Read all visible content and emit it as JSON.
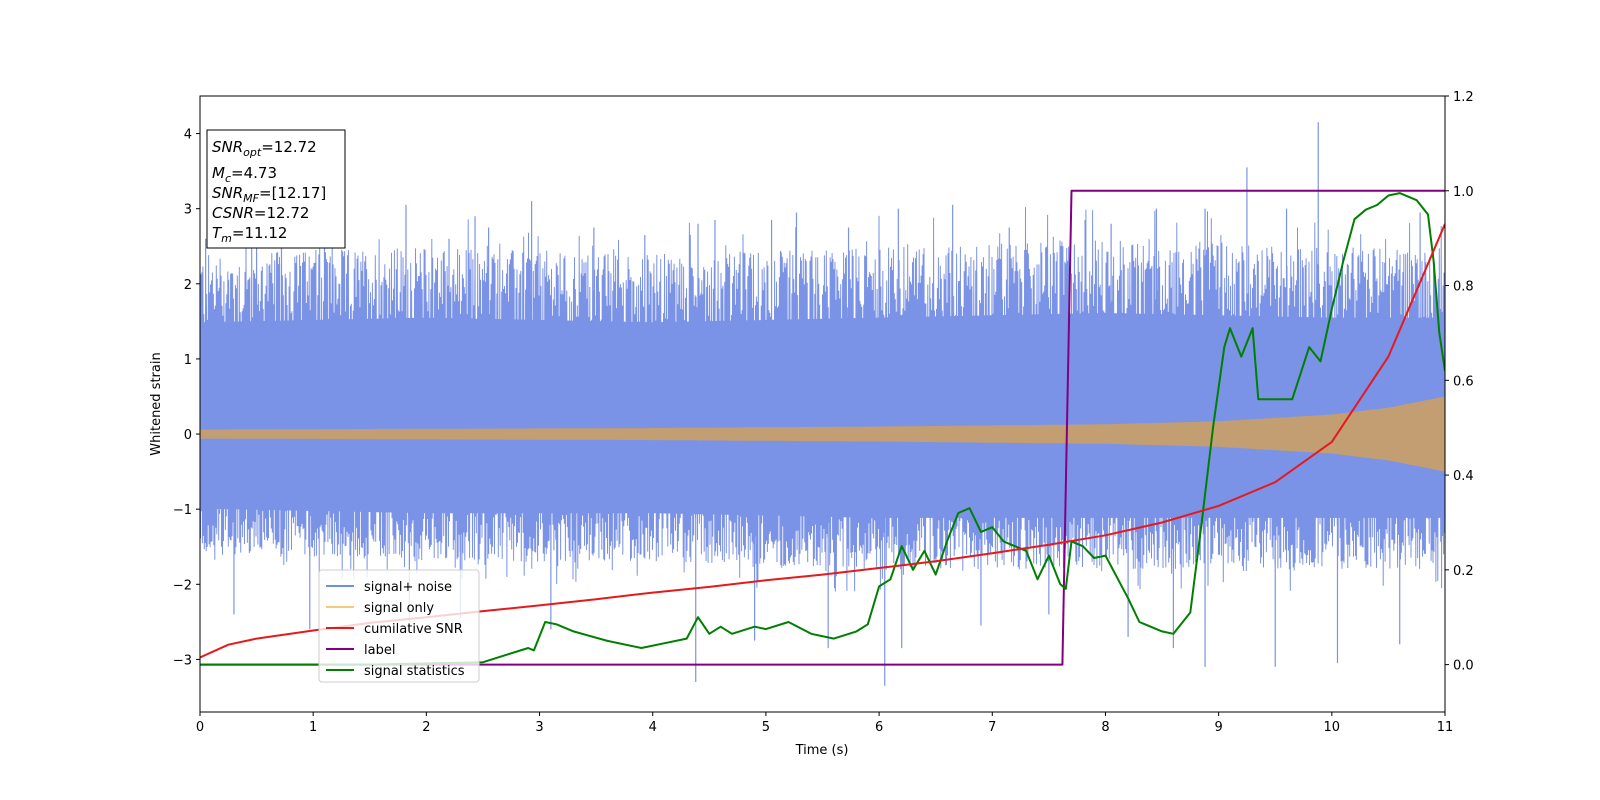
{
  "chart_data": {
    "type": "line",
    "xlabel": "Time (s)",
    "ylabel": "Whitened strain",
    "xlim": [
      0,
      11
    ],
    "ylim_left": [
      -3.7,
      4.5
    ],
    "ylim_right": [
      -0.1,
      1.2
    ],
    "x_ticks": [
      "0",
      "1",
      "2",
      "3",
      "4",
      "5",
      "6",
      "7",
      "8",
      "9",
      "10",
      "11"
    ],
    "y_ticks_left": [
      "−3",
      "−2",
      "−1",
      "0",
      "1",
      "2",
      "3",
      "4"
    ],
    "y_ticks_right": [
      "0.0",
      "0.2",
      "0.4",
      "0.6",
      "0.8",
      "1.0",
      "1.2"
    ],
    "info_box": {
      "snr_opt": {
        "sym": "SNR",
        "sub": "opt",
        "value": "=12.72"
      },
      "mc": {
        "sym": "M",
        "sub": "c",
        "value": "=4.73"
      },
      "snr_mf": {
        "sym": "SNR",
        "sub": "MF",
        "value": "=[12.17]"
      },
      "csnr": {
        "sym": "CSNR",
        "sub": "",
        "value": "=12.72"
      },
      "tm": {
        "sym": "T",
        "sub": "m",
        "value": "=11.12"
      }
    },
    "legend": {
      "position": "lower-left",
      "entries": [
        {
          "label": "signal+ noise",
          "color": "#6f8ee8"
        },
        {
          "label": "signal only",
          "color": "#f5c97a"
        },
        {
          "label": "cumilative SNR",
          "color": "#e41a1c"
        },
        {
          "label": "label",
          "color": "#800080"
        },
        {
          "label": "signal statistics",
          "color": "#007f00"
        }
      ]
    },
    "series": [
      {
        "name": "signal+ noise",
        "axis": "left",
        "color": "#7b93e6",
        "envelope": {
          "x": [
            0,
            2,
            4,
            6,
            8,
            10,
            11
          ],
          "upper": [
            2.4,
            2.5,
            2.4,
            2.5,
            2.6,
            2.5,
            2.5
          ],
          "lower": [
            -1.6,
            -1.7,
            -1.7,
            -1.8,
            -1.8,
            -1.8,
            -1.8
          ]
        },
        "spikes": [
          [
            0.05,
            2.6
          ],
          [
            0.5,
            2.9
          ],
          [
            0.72,
            2.55
          ],
          [
            1.1,
            2.65
          ],
          [
            1.82,
            3.05
          ],
          [
            2.2,
            2.6
          ],
          [
            2.43,
            2.9
          ],
          [
            2.55,
            2.75
          ],
          [
            2.93,
            3.1
          ],
          [
            3.48,
            2.75
          ],
          [
            3.93,
            2.65
          ],
          [
            4.4,
            2.8
          ],
          [
            4.55,
            2.85
          ],
          [
            5.05,
            2.85
          ],
          [
            5.27,
            2.95
          ],
          [
            5.73,
            2.75
          ],
          [
            6.17,
            3.0
          ],
          [
            6.65,
            3.05
          ],
          [
            7.15,
            2.75
          ],
          [
            7.82,
            2.85
          ],
          [
            8.05,
            2.8
          ],
          [
            8.45,
            3.0
          ],
          [
            8.88,
            3.0
          ],
          [
            9.25,
            3.55
          ],
          [
            9.6,
            3.0
          ],
          [
            9.88,
            4.15
          ],
          [
            10.78,
            2.95
          ],
          [
            0.3,
            -2.4
          ],
          [
            0.97,
            -2.6
          ],
          [
            1.85,
            -2.5
          ],
          [
            2.3,
            -2.45
          ],
          [
            3.1,
            -2.6
          ],
          [
            4.38,
            -3.3
          ],
          [
            4.9,
            -2.75
          ],
          [
            5.55,
            -2.85
          ],
          [
            6.05,
            -3.35
          ],
          [
            6.2,
            -2.85
          ],
          [
            6.9,
            -2.55
          ],
          [
            7.5,
            -2.4
          ],
          [
            8.2,
            -2.7
          ],
          [
            8.6,
            -2.85
          ],
          [
            8.88,
            -3.1
          ],
          [
            9.5,
            -3.1
          ],
          [
            10.05,
            -3.05
          ],
          [
            10.6,
            -2.8
          ]
        ]
      },
      {
        "name": "signal only",
        "axis": "left",
        "color": "#c29e72",
        "amplitude": {
          "x": [
            0,
            2,
            4,
            6,
            8,
            9,
            10,
            10.5,
            11
          ],
          "values": [
            0.06,
            0.07,
            0.08,
            0.1,
            0.13,
            0.17,
            0.26,
            0.35,
            0.5
          ]
        }
      },
      {
        "name": "cumilative SNR",
        "axis": "right",
        "color": "#e41a1c",
        "x": [
          0,
          0.25,
          0.5,
          1,
          1.5,
          2,
          2.5,
          3,
          3.5,
          4,
          4.5,
          5,
          5.5,
          6,
          6.5,
          7,
          7.5,
          8,
          8.5,
          9,
          9.5,
          10,
          10.5,
          11
        ],
        "values": [
          0.015,
          0.042,
          0.055,
          0.072,
          0.088,
          0.1,
          0.113,
          0.125,
          0.138,
          0.152,
          0.164,
          0.178,
          0.19,
          0.204,
          0.218,
          0.235,
          0.253,
          0.273,
          0.3,
          0.335,
          0.385,
          0.47,
          0.65,
          0.93
        ]
      },
      {
        "name": "label",
        "axis": "right",
        "color": "#800080",
        "x": [
          0,
          7.62,
          7.7,
          11
        ],
        "values": [
          0,
          0,
          1,
          1
        ]
      },
      {
        "name": "signal statistics",
        "axis": "right",
        "color": "#007f00",
        "x": [
          0,
          1.5,
          2.5,
          2.7,
          2.9,
          2.95,
          3.05,
          3.15,
          3.3,
          3.6,
          3.9,
          4.1,
          4.3,
          4.4,
          4.5,
          4.6,
          4.7,
          4.9,
          5.0,
          5.2,
          5.4,
          5.6,
          5.8,
          5.9,
          6.0,
          6.1,
          6.2,
          6.3,
          6.4,
          6.5,
          6.6,
          6.7,
          6.8,
          6.9,
          7.0,
          7.1,
          7.3,
          7.4,
          7.5,
          7.6,
          7.65,
          7.7,
          7.8,
          7.9,
          8.0,
          8.2,
          8.3,
          8.5,
          8.6,
          8.75,
          8.85,
          8.95,
          9.05,
          9.1,
          9.2,
          9.3,
          9.35,
          9.5,
          9.65,
          9.8,
          9.9,
          10.0,
          10.1,
          10.2,
          10.3,
          10.4,
          10.5,
          10.6,
          10.75,
          10.85,
          10.9,
          10.95,
          11.0
        ],
        "values": [
          0.0,
          0.0,
          0.005,
          0.02,
          0.035,
          0.03,
          0.09,
          0.085,
          0.07,
          0.05,
          0.035,
          0.045,
          0.055,
          0.1,
          0.065,
          0.08,
          0.065,
          0.08,
          0.075,
          0.09,
          0.065,
          0.055,
          0.07,
          0.085,
          0.165,
          0.18,
          0.25,
          0.2,
          0.24,
          0.19,
          0.26,
          0.32,
          0.33,
          0.28,
          0.29,
          0.26,
          0.24,
          0.18,
          0.23,
          0.17,
          0.16,
          0.26,
          0.25,
          0.225,
          0.23,
          0.14,
          0.09,
          0.07,
          0.065,
          0.11,
          0.3,
          0.5,
          0.67,
          0.71,
          0.65,
          0.71,
          0.56,
          0.56,
          0.56,
          0.67,
          0.64,
          0.75,
          0.85,
          0.94,
          0.96,
          0.97,
          0.99,
          0.995,
          0.98,
          0.95,
          0.85,
          0.7,
          0.62
        ]
      }
    ]
  }
}
